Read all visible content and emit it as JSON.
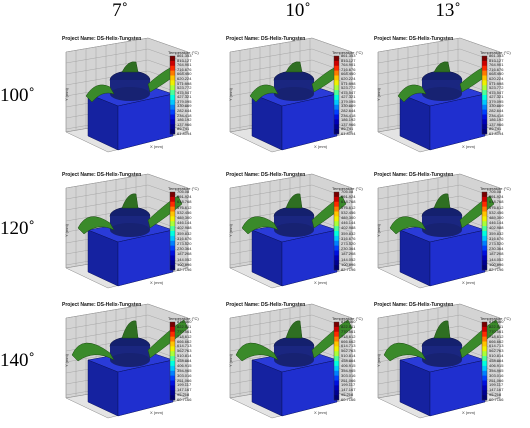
{
  "columns": [
    "7˚",
    "10˚",
    "13˚"
  ],
  "rows": [
    "100˚",
    "120˚",
    "140˚"
  ],
  "panel": {
    "project_label": "Project Name: DS-Helix-Tungsten",
    "colorbar_title": "Temperature (°C)",
    "axis_x": "X (mm)",
    "axis_y": "Y (mm)"
  },
  "panels": [
    {
      "row": 0,
      "col": 0,
      "colorbar_labels": [
        "861.353",
        "813.127",
        "764.901",
        "716.676",
        "668.450",
        "620.224",
        "571.998",
        "523.772",
        "475.547",
        "427.321",
        "379.095",
        "330.869",
        "282.644",
        "234.418",
        "186.192",
        "137.966",
        "89.741",
        "61.8094"
      ]
    },
    {
      "row": 0,
      "col": 1,
      "colorbar_labels": [
        "861.353",
        "813.127",
        "764.901",
        "716.676",
        "668.450",
        "620.224",
        "571.998",
        "523.772",
        "475.547",
        "427.321",
        "379.095",
        "330.869",
        "282.644",
        "234.418",
        "186.192",
        "137.966",
        "89.741",
        "61.8094"
      ]
    },
    {
      "row": 0,
      "col": 2,
      "colorbar_labels": [
        "861.353",
        "813.127",
        "764.901",
        "716.676",
        "668.450",
        "620.224",
        "571.998",
        "523.772",
        "475.547",
        "427.321",
        "379.095",
        "330.869",
        "282.644",
        "234.418",
        "186.192",
        "137.966",
        "89.741",
        "61.8094"
      ]
    },
    {
      "row": 1,
      "col": 0,
      "colorbar_labels": [
        "705.08",
        "661.924",
        "618.768",
        "575.612",
        "532.456",
        "489.300",
        "446.144",
        "402.988",
        "359.832",
        "316.676",
        "273.520",
        "230.364",
        "187.208",
        "144.052",
        "100.896",
        "82.7196"
      ]
    },
    {
      "row": 1,
      "col": 1,
      "colorbar_labels": [
        "705.08",
        "661.924",
        "618.768",
        "575.612",
        "532.456",
        "489.300",
        "446.144",
        "402.988",
        "359.832",
        "316.676",
        "273.520",
        "230.364",
        "187.208",
        "144.052",
        "100.896",
        "82.7196"
      ]
    },
    {
      "row": 1,
      "col": 2,
      "colorbar_labels": [
        "705.08",
        "661.924",
        "618.768",
        "575.612",
        "532.456",
        "489.300",
        "446.144",
        "402.988",
        "359.832",
        "316.676",
        "273.520",
        "230.364",
        "187.208",
        "144.052",
        "100.896",
        "82.7196"
      ]
    },
    {
      "row": 2,
      "col": 0,
      "colorbar_labels": [
        "874.460",
        "822.511",
        "770.561",
        "718.612",
        "666.662",
        "614.713",
        "562.763",
        "510.814",
        "458.864",
        "406.915",
        "354.965",
        "303.016",
        "251.066",
        "199.117",
        "147.167",
        "95.218",
        "60.7166"
      ]
    },
    {
      "row": 2,
      "col": 1,
      "colorbar_labels": [
        "874.460",
        "822.511",
        "770.561",
        "718.612",
        "666.662",
        "614.713",
        "562.763",
        "510.814",
        "458.864",
        "406.915",
        "354.965",
        "303.016",
        "251.066",
        "199.117",
        "147.167",
        "95.218",
        "60.7166"
      ]
    },
    {
      "row": 2,
      "col": 2,
      "colorbar_labels": [
        "874.460",
        "822.511",
        "770.561",
        "718.612",
        "666.662",
        "614.713",
        "562.763",
        "510.814",
        "458.864",
        "406.915",
        "354.965",
        "303.016",
        "251.066",
        "199.117",
        "147.167",
        "95.218",
        "60.7166"
      ]
    }
  ],
  "colors": {
    "block_front": "#1f2fcf",
    "block_side": "#1522a0",
    "block_top": "#2a3bd8",
    "boss": "#14206e",
    "helix": "#3a8a2a",
    "grid": "#9a9a9a",
    "wall": "#d4d4d4"
  }
}
